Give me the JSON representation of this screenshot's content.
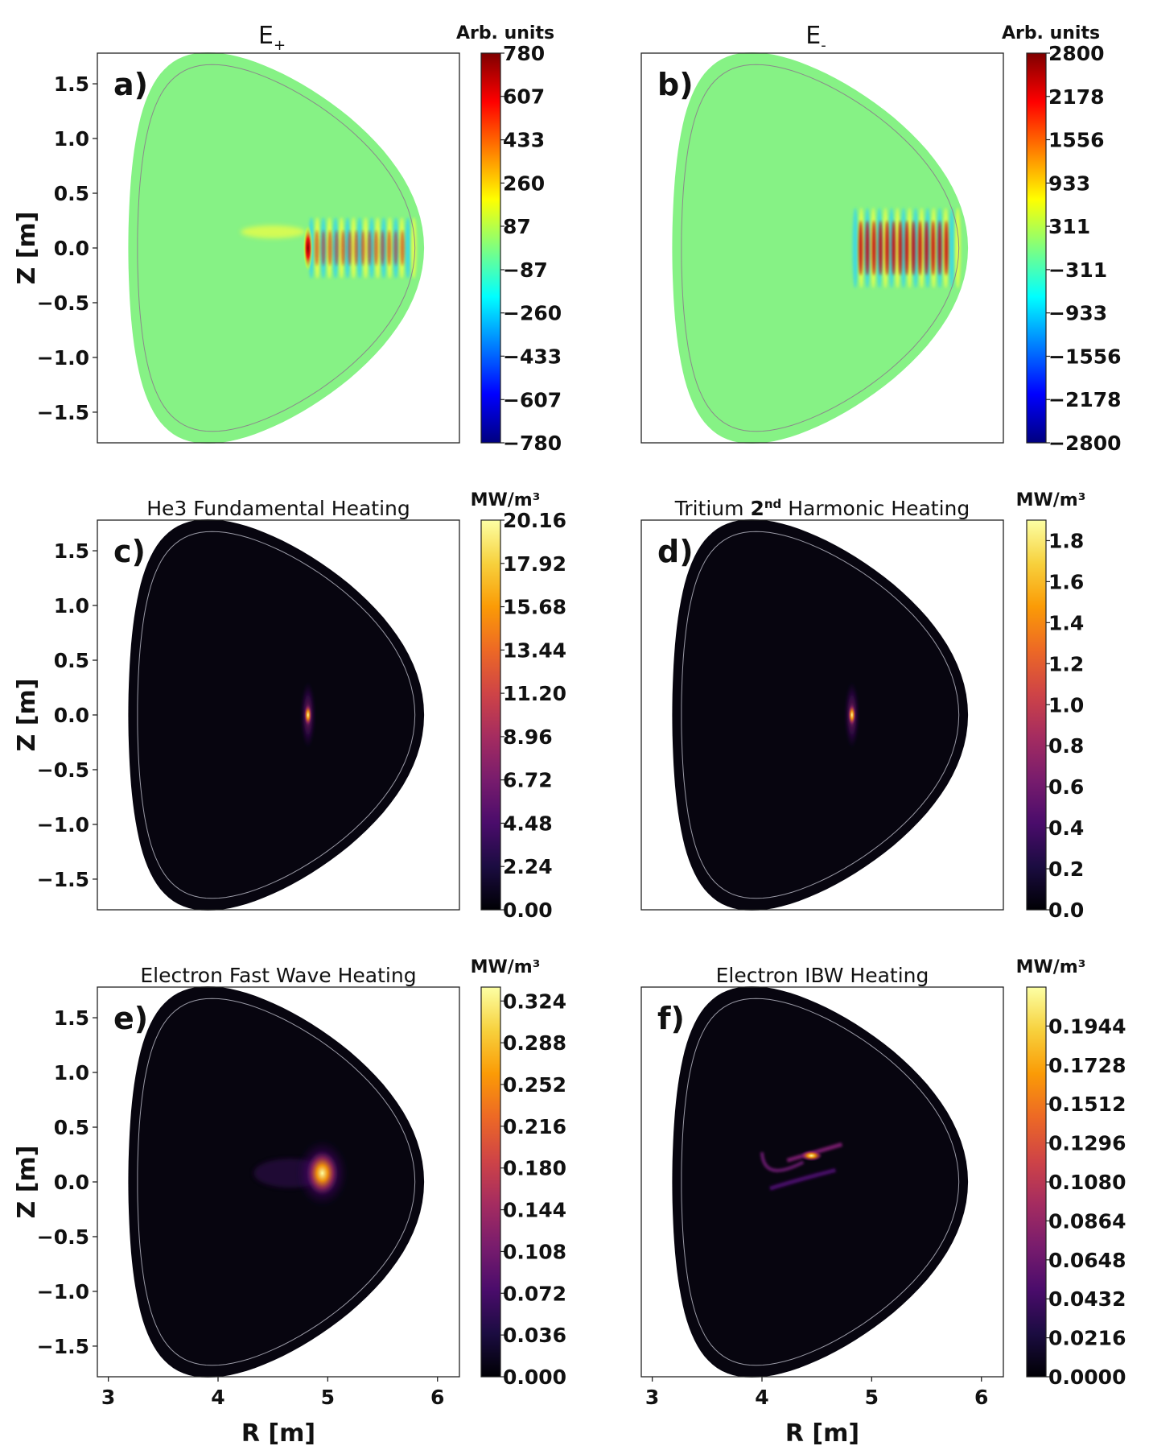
{
  "chart_data": [
    {
      "type": "heatmap",
      "panel_label": "a)",
      "title_main": "E",
      "title_sub": "+",
      "colorbar_label": "Arb. units",
      "colormap": "jet",
      "clim": [
        -780,
        780
      ],
      "colorbar_ticks": [
        "780",
        "607",
        "433",
        "260",
        "87",
        "−87",
        "−260",
        "−433",
        "−607",
        "−780"
      ],
      "xlabel": "",
      "ylabel": "Z [m]",
      "xlim": [
        2.9,
        6.2
      ],
      "ylim": [
        -1.78,
        1.78
      ],
      "xticks": [],
      "yticks": [
        "1.5",
        "1.0",
        "0.5",
        "0.0",
        "−0.5",
        "−1.0",
        "−1.5"
      ]
    },
    {
      "type": "heatmap",
      "panel_label": "b)",
      "title_main": "E",
      "title_sub": "-",
      "colorbar_label": "Arb. units",
      "colormap": "jet",
      "clim": [
        -2800,
        2800
      ],
      "colorbar_ticks": [
        "2800",
        "2178",
        "1556",
        "933",
        "311",
        "−311",
        "−933",
        "−1556",
        "−2178",
        "−2800"
      ],
      "xlabel": "",
      "ylabel": "",
      "xlim": [
        2.9,
        6.2
      ],
      "ylim": [
        -1.78,
        1.78
      ],
      "xticks": [],
      "yticks": []
    },
    {
      "type": "heatmap",
      "panel_label": "c)",
      "title_main": "He3 Fundamental Heating",
      "colorbar_label": "MW/m³",
      "colormap": "inferno",
      "clim": [
        0,
        20.16
      ],
      "colorbar_ticks": [
        "20.16",
        "17.92",
        "15.68",
        "13.44",
        "11.20",
        "8.96",
        "6.72",
        "4.48",
        "2.24",
        "0.00"
      ],
      "xlabel": "",
      "ylabel": "Z [m]",
      "xlim": [
        2.9,
        6.2
      ],
      "ylim": [
        -1.78,
        1.78
      ],
      "xticks": [],
      "yticks": [
        "1.5",
        "1.0",
        "0.5",
        "0.0",
        "−0.5",
        "−1.0",
        "−1.5"
      ]
    },
    {
      "type": "heatmap",
      "panel_label": "d)",
      "title_main": "Tritium ",
      "title_bold": "2",
      "title_sup": "nd",
      "title_rest": " Harmonic Heating",
      "colorbar_label": "MW/m³",
      "colormap": "inferno",
      "clim": [
        0,
        1.9
      ],
      "colorbar_ticks": [
        "1.8",
        "1.6",
        "1.4",
        "1.2",
        "1.0",
        "0.8",
        "0.6",
        "0.4",
        "0.2",
        "0.0"
      ],
      "xlabel": "",
      "ylabel": "",
      "xlim": [
        2.9,
        6.2
      ],
      "ylim": [
        -1.78,
        1.78
      ],
      "xticks": [],
      "yticks": []
    },
    {
      "type": "heatmap",
      "panel_label": "e)",
      "title_main": "Electron Fast Wave Heating",
      "colorbar_label": "MW/m³",
      "colormap": "inferno",
      "clim": [
        0,
        0.336
      ],
      "colorbar_ticks": [
        "0.324",
        "0.288",
        "0.252",
        "0.216",
        "0.180",
        "0.144",
        "0.108",
        "0.072",
        "0.036",
        "0.000"
      ],
      "xlabel": "R [m]",
      "ylabel": "Z [m]",
      "xlim": [
        2.9,
        6.2
      ],
      "ylim": [
        -1.78,
        1.78
      ],
      "xticks": [
        "3",
        "4",
        "5",
        "6"
      ],
      "yticks": [
        "1.5",
        "1.0",
        "0.5",
        "0.0",
        "−0.5",
        "−1.0",
        "−1.5"
      ]
    },
    {
      "type": "heatmap",
      "panel_label": "f)",
      "title_main": "Electron IBW Heating",
      "colorbar_label": "MW/m³",
      "colormap": "inferno",
      "clim": [
        0,
        0.216
      ],
      "colorbar_ticks": [
        "0.1944",
        "0.1728",
        "0.1512",
        "0.1296",
        "0.1080",
        "0.0864",
        "0.0648",
        "0.0432",
        "0.0216",
        "0.0000"
      ],
      "xlabel": "R [m]",
      "ylabel": "",
      "xlim": [
        2.9,
        6.2
      ],
      "ylim": [
        -1.78,
        1.78
      ],
      "xticks": [
        "3",
        "4",
        "5",
        "6"
      ],
      "yticks": []
    }
  ]
}
